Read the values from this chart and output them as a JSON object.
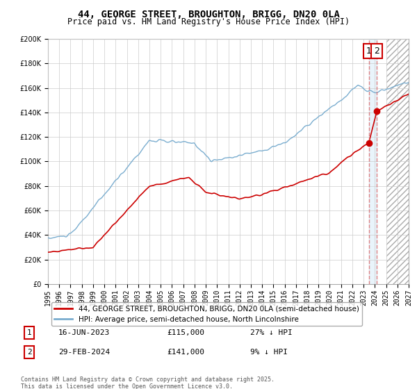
{
  "title": "44, GEORGE STREET, BROUGHTON, BRIGG, DN20 0LA",
  "subtitle": "Price paid vs. HM Land Registry's House Price Index (HPI)",
  "ylim": [
    0,
    200000
  ],
  "yticks": [
    0,
    20000,
    40000,
    60000,
    80000,
    100000,
    120000,
    140000,
    160000,
    180000,
    200000
  ],
  "background_color": "#ffffff",
  "grid_color": "#cccccc",
  "legend1_label": "44, GEORGE STREET, BROUGHTON, BRIGG, DN20 0LA (semi-detached house)",
  "legend2_label": "HPI: Average price, semi-detached house, North Lincolnshire",
  "line1_color": "#cc0000",
  "line2_color": "#7aadcf",
  "annotation1_num": "1",
  "annotation1_date": "16-JUN-2023",
  "annotation1_price": "£115,000",
  "annotation1_hpi": "27% ↓ HPI",
  "annotation2_num": "2",
  "annotation2_date": "29-FEB-2024",
  "annotation2_price": "£141,000",
  "annotation2_hpi": "9% ↓ HPI",
  "footer": "Contains HM Land Registry data © Crown copyright and database right 2025.\nThis data is licensed under the Open Government Licence v3.0.",
  "sale1_year": 2023.46,
  "sale1_price": 115000,
  "sale2_year": 2024.16,
  "sale2_price": 141000,
  "xlim_left": 1995,
  "xlim_right": 2027,
  "future_start": 2025.0
}
